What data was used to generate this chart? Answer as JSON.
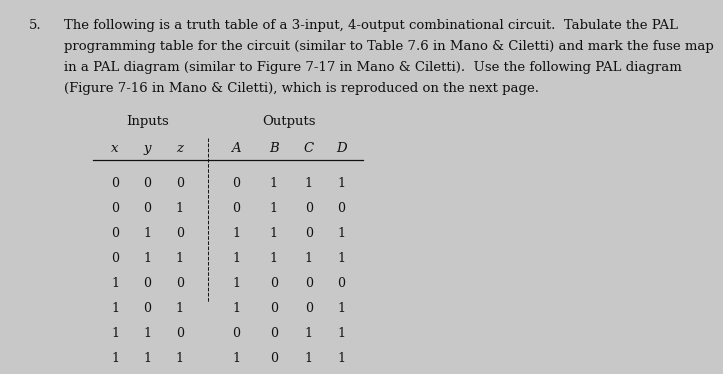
{
  "title_number": "5.",
  "title_text": "The following is a truth table of a 3-input, 4-output combinational circuit.  Tabulate the PAL\nprogramming table for the circuit (similar to Table 7.6 in Mano & Ciletti) and mark the fuse map\nin a PAL diagram (similar to Figure 7-17 in Mano & Ciletti).  Use the following PAL diagram\n(Figure 7-16 in Mano & Ciletti), which is reproduced on the next page.",
  "inputs_label": "Inputs",
  "outputs_label": "Outputs",
  "col_headers": [
    "x",
    "y",
    "z",
    "A",
    "B",
    "C",
    "D"
  ],
  "rows": [
    [
      0,
      0,
      0,
      0,
      1,
      1,
      1
    ],
    [
      0,
      0,
      1,
      0,
      1,
      0,
      0
    ],
    [
      0,
      1,
      0,
      1,
      1,
      0,
      1
    ],
    [
      0,
      1,
      1,
      1,
      1,
      1,
      1
    ],
    [
      1,
      0,
      0,
      1,
      0,
      0,
      0
    ],
    [
      1,
      0,
      1,
      1,
      0,
      0,
      1
    ],
    [
      1,
      1,
      0,
      0,
      0,
      1,
      1
    ],
    [
      1,
      1,
      1,
      1,
      0,
      1,
      1
    ]
  ],
  "bg_color": "#c8c8c8",
  "text_color": "#111111",
  "font_size_body": 9,
  "font_size_header": 9.5,
  "font_size_title": 9.5
}
